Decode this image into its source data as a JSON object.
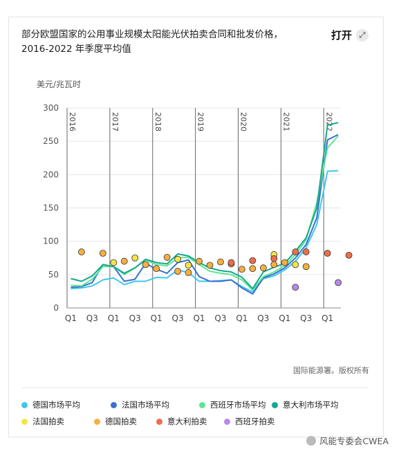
{
  "title": "部分欧盟国家的公用事业规模太阳能光伏拍卖合同和批发价格，2016-2022 年季度平均值",
  "open_label": "打开",
  "open_icon": "expand-arrows-icon",
  "source": "国际能源署。版权所有",
  "watermark": "风能专委会CWEA",
  "chart_data": {
    "type": "line",
    "ylabel": "美元/兆瓦时",
    "ylim": [
      0,
      300
    ],
    "yticks": [
      0,
      50,
      100,
      150,
      200,
      250,
      300
    ],
    "grid": true,
    "x_start": "2016 Q1",
    "x_tick_labels": [
      "Q1",
      "Q3",
      "Q1",
      "Q3",
      "Q1",
      "Q3",
      "Q1",
      "Q3",
      "Q1",
      "Q3",
      "Q1",
      "Q3",
      "Q1"
    ],
    "year_labels": [
      "2016",
      "2017",
      "2018",
      "2019",
      "2020",
      "2021",
      "2022"
    ],
    "legend_position": "bottom",
    "series": [
      {
        "name": "德国市场平均",
        "color": "#41c6f0",
        "kind": "line",
        "values": [
          29,
          30,
          33,
          42,
          45,
          35,
          40,
          40,
          46,
          45,
          57,
          53,
          40,
          40,
          41,
          42,
          32,
          24,
          44,
          48,
          57,
          70,
          90,
          125,
          205,
          206
        ]
      },
      {
        "name": "法国市场平均",
        "color": "#3c6fd0",
        "kind": "line",
        "values": [
          31,
          32,
          38,
          65,
          62,
          40,
          43,
          67,
          58,
          52,
          68,
          72,
          47,
          40,
          40,
          42,
          30,
          21,
          45,
          51,
          60,
          75,
          95,
          135,
          252,
          260
        ]
      },
      {
        "name": "西班牙市场平均",
        "color": "#5de693",
        "kind": "line",
        "values": [
          34,
          33,
          43,
          62,
          62,
          50,
          60,
          72,
          65,
          63,
          75,
          76,
          65,
          55,
          52,
          50,
          42,
          27,
          47,
          54,
          63,
          80,
          102,
          158,
          240,
          258
        ]
      },
      {
        "name": "意大利市场平均",
        "color": "#14a88c",
        "kind": "line",
        "values": [
          44,
          40,
          48,
          65,
          62,
          52,
          60,
          73,
          68,
          66,
          81,
          78,
          68,
          60,
          56,
          54,
          46,
          29,
          54,
          61,
          67,
          85,
          105,
          150,
          274,
          278
        ]
      }
    ],
    "points": [
      {
        "name": "法国拍卖",
        "color": "#f4e44a",
        "data": [
          [
            4,
            68
          ],
          [
            6,
            75
          ],
          [
            10,
            73
          ],
          [
            11,
            64
          ],
          [
            19,
            80
          ],
          [
            21,
            65
          ]
        ]
      },
      {
        "name": "德国拍卖",
        "color": "#f5b040",
        "data": [
          [
            1,
            84
          ],
          [
            3,
            82
          ],
          [
            5,
            70
          ],
          [
            7,
            65
          ],
          [
            8,
            59
          ],
          [
            9,
            76
          ],
          [
            10,
            55
          ],
          [
            11,
            53
          ],
          [
            12,
            70
          ],
          [
            13,
            64
          ],
          [
            14,
            69
          ],
          [
            15,
            66
          ],
          [
            16,
            58
          ],
          [
            17,
            59
          ],
          [
            18,
            60
          ],
          [
            19,
            65
          ],
          [
            20,
            68
          ],
          [
            22,
            62
          ]
        ]
      },
      {
        "name": "意大利拍卖",
        "color": "#ee6e4a",
        "data": [
          [
            15,
            68
          ],
          [
            17,
            71
          ],
          [
            19,
            74
          ],
          [
            21,
            84
          ],
          [
            22,
            84
          ],
          [
            24,
            82
          ],
          [
            26,
            79
          ]
        ]
      },
      {
        "name": "西班牙拍卖",
        "color": "#b58aea",
        "data": [
          [
            21,
            31
          ],
          [
            25,
            38
          ]
        ]
      }
    ]
  },
  "legend": {
    "row1": [
      {
        "label": "德国市场平均",
        "color": "#41c6f0"
      },
      {
        "label": "法国市场平均",
        "color": "#3c6fd0"
      },
      {
        "label": "西班牙市场平均",
        "color": "#5de693"
      },
      {
        "label": "意大利市场平均",
        "color": "#14a88c"
      }
    ],
    "row2": [
      {
        "label": "法国拍卖",
        "color": "#f4e44a"
      },
      {
        "label": "德国拍卖",
        "color": "#f5b040"
      },
      {
        "label": "意大利拍卖",
        "color": "#ee6e4a"
      },
      {
        "label": "西班牙拍卖",
        "color": "#b58aea"
      }
    ]
  }
}
